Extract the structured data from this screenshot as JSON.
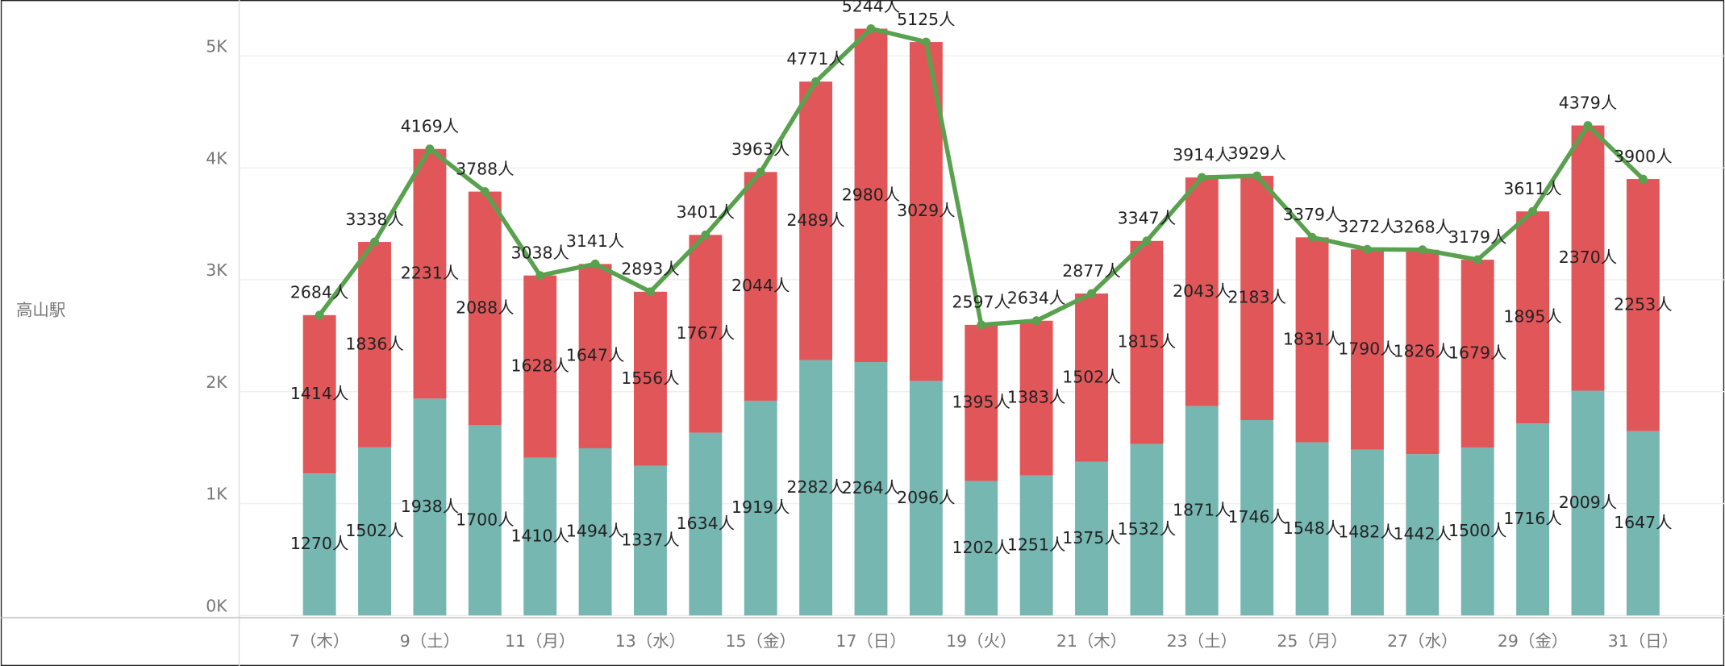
{
  "chart_data": {
    "type": "bar",
    "stacked": true,
    "row_label": "高山駅",
    "categories": [
      "7（木）",
      null,
      "9（土）",
      null,
      "11（月）",
      null,
      "13（水）",
      null,
      "15（金）",
      null,
      "17（日）",
      null,
      "19（火）",
      null,
      "21（木）",
      null,
      "23（土）",
      null,
      "25（月）",
      null,
      "27（水）",
      null,
      "29（金）",
      null,
      "31（日）"
    ],
    "series": [
      {
        "type": "bar",
        "color": "#76b7b2",
        "values": [
          1270,
          1502,
          1938,
          1700,
          1410,
          1494,
          1337,
          1634,
          1919,
          2282,
          2264,
          2096,
          1202,
          1251,
          1375,
          1532,
          1871,
          1746,
          1548,
          1482,
          1442,
          1500,
          1716,
          2009,
          1647
        ],
        "value_labels": [
          "1270人",
          "1502人",
          "1938人",
          "1700人",
          "1410人",
          "1494人",
          "1337人",
          "1634人",
          "1919人",
          "2282人",
          "2264人",
          "2096人",
          "1202人",
          "1251人",
          "1375人",
          "1532人",
          "1871人",
          "1746人",
          "1548人",
          "1482人",
          "1442人",
          "1500人",
          "1716人",
          "2009人",
          "1647人"
        ]
      },
      {
        "type": "bar",
        "color": "#e15759",
        "values": [
          1414,
          1836,
          2231,
          2088,
          1628,
          1647,
          1556,
          1767,
          2044,
          2489,
          2980,
          3029,
          1395,
          1383,
          1502,
          1815,
          2043,
          2183,
          1831,
          1790,
          1826,
          1679,
          1895,
          2370,
          2253
        ],
        "value_labels": [
          "1414人",
          "1836人",
          "2231人",
          "2088人",
          "1628人",
          "1647人",
          "1556人",
          "1767人",
          "2044人",
          "2489人",
          "2980人",
          "3029人",
          "1395人",
          "1383人",
          "1502人",
          "1815人",
          "2043人",
          "2183人",
          "1831人",
          "1790人",
          "1826人",
          "1679人",
          "1895人",
          "2370人",
          "2253人"
        ]
      },
      {
        "type": "line",
        "color": "#59a14f",
        "values": [
          2684,
          3338,
          4169,
          3788,
          3038,
          3141,
          2893,
          3401,
          3963,
          4771,
          5244,
          5125,
          2597,
          2634,
          2877,
          3347,
          3914,
          3929,
          3379,
          3272,
          3268,
          3179,
          3611,
          4379,
          3900
        ],
        "value_labels": [
          "2684人",
          "3338人",
          "4169人",
          "3788人",
          "3038人",
          "3141人",
          "2893人",
          "3401人",
          "3963人",
          "4771人",
          "5244人",
          "5125人",
          "2597人",
          "2634人",
          "2877人",
          "3347人",
          "3914人",
          "3929人",
          "3379人",
          "3272人",
          "3268人",
          "3179人",
          "3611人",
          "4379人",
          "3900人"
        ]
      }
    ],
    "ylim": [
      0,
      5500
    ],
    "yticks": [
      {
        "value": 0,
        "label": "0K"
      },
      {
        "value": 1000,
        "label": "1K"
      },
      {
        "value": 2000,
        "label": "2K"
      },
      {
        "value": 3000,
        "label": "3K"
      },
      {
        "value": 4000,
        "label": "4K"
      },
      {
        "value": 5000,
        "label": "5K"
      }
    ],
    "grid": true
  }
}
